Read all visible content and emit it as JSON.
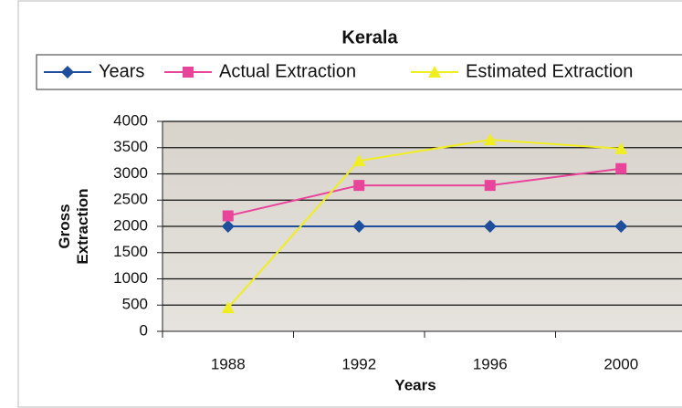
{
  "chart_data": {
    "type": "line",
    "title": "Kerala",
    "categories": [
      "1988",
      "1992",
      "1996",
      "2000"
    ],
    "series": [
      {
        "name": "Years",
        "color": "#1f4e9c",
        "marker": "diamond",
        "values": [
          2000,
          2000,
          2000,
          2000
        ]
      },
      {
        "name": "Actual Extraction",
        "color": "#e8449a",
        "marker": "square",
        "values": [
          2200,
          2780,
          2780,
          3100
        ]
      },
      {
        "name": "Estimated Extraction",
        "color": "#f0ee20",
        "marker": "triangle",
        "values": [
          450,
          3250,
          3650,
          3480
        ]
      }
    ],
    "x_label": "Years",
    "y_label": "Gross Extraction",
    "ylim": [
      0,
      4000
    ],
    "yticks": [
      0,
      500,
      1000,
      1500,
      2000,
      2500,
      3000,
      3500,
      4000
    ],
    "grid": true,
    "legend": "top"
  }
}
